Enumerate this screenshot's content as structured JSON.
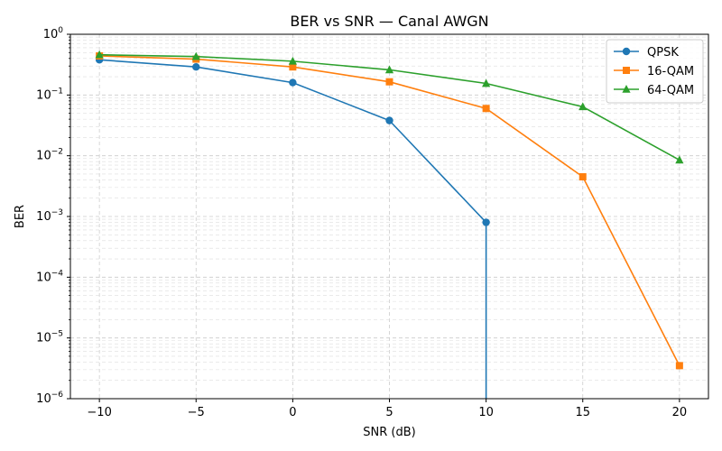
{
  "chart_data": {
    "type": "line",
    "title": "BER vs SNR — Canal AWGN",
    "xlabel": "SNR (dB)",
    "ylabel": "BER",
    "yscale": "log",
    "xlim": [
      -11.5,
      21.5
    ],
    "ylim": [
      1e-06,
      1
    ],
    "x_ticks": [
      "−10",
      "−5",
      "0",
      "5",
      "10",
      "15",
      "20"
    ],
    "y_ticks": [
      {
        "base": "10",
        "exp": "−6"
      },
      {
        "base": "10",
        "exp": "−5"
      },
      {
        "base": "10",
        "exp": "−4"
      },
      {
        "base": "10",
        "exp": "−3"
      },
      {
        "base": "10",
        "exp": "−2"
      },
      {
        "base": "10",
        "exp": "−1"
      },
      {
        "base": "10",
        "exp": "0"
      }
    ],
    "grid": true,
    "legend_position": "top-right",
    "series": [
      {
        "name": "QPSK",
        "color": "#1f77b4",
        "marker": "circle",
        "x": [
          -10,
          -5,
          0,
          5,
          10,
          10
        ],
        "y": [
          0.38,
          0.29,
          0.16,
          0.038,
          0.0008,
          1e-06
        ]
      },
      {
        "name": "16-QAM",
        "color": "#ff7f0e",
        "marker": "square",
        "x": [
          -10,
          -5,
          0,
          5,
          10,
          15,
          20
        ],
        "y": [
          0.44,
          0.39,
          0.29,
          0.165,
          0.06,
          0.0045,
          3.5e-06
        ]
      },
      {
        "name": "64-QAM",
        "color": "#2ca02c",
        "marker": "triangle",
        "x": [
          -10,
          -5,
          0,
          5,
          10,
          15,
          20
        ],
        "y": [
          0.46,
          0.43,
          0.36,
          0.26,
          0.155,
          0.064,
          0.0085
        ]
      }
    ]
  }
}
